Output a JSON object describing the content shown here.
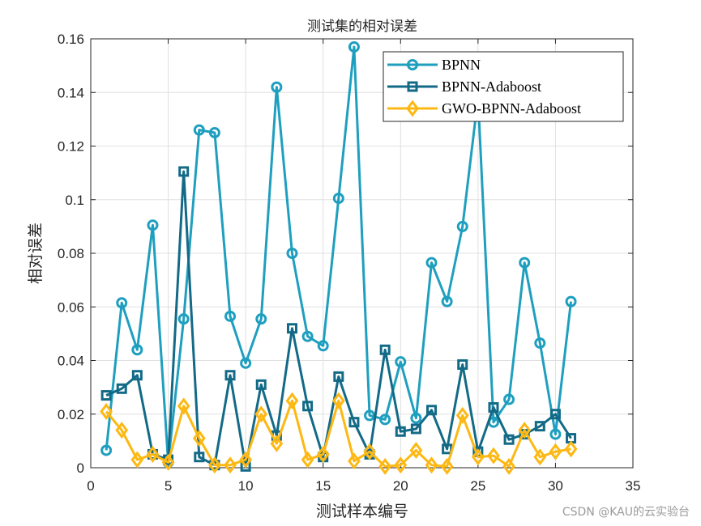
{
  "chart_data": {
    "type": "line",
    "title": "测试集的相对误差",
    "xlabel": "测试样本编号",
    "ylabel": "相对误差",
    "xlim": [
      0,
      35
    ],
    "ylim": [
      0,
      0.16
    ],
    "xticks": [
      0,
      5,
      10,
      15,
      20,
      25,
      30,
      35
    ],
    "yticks": [
      0,
      0.02,
      0.04,
      0.06,
      0.08,
      0.1,
      0.12,
      0.14,
      0.16
    ],
    "ytick_labels": [
      "0",
      "0.02",
      "0.04",
      "0.06",
      "0.08",
      "0.1",
      "0.12",
      "0.14",
      "0.16"
    ],
    "grid": true,
    "legend_position": "upper right",
    "x": [
      1,
      2,
      3,
      4,
      5,
      6,
      7,
      8,
      9,
      10,
      11,
      12,
      13,
      14,
      15,
      16,
      17,
      18,
      19,
      20,
      21,
      22,
      23,
      24,
      25,
      26,
      27,
      28,
      29,
      30,
      31
    ],
    "series": [
      {
        "name": "BPNN",
        "color": "#1F9FBF",
        "marker": "circle",
        "values": [
          0.0065,
          0.0615,
          0.044,
          0.0905,
          0.002,
          0.0555,
          0.126,
          0.125,
          0.0565,
          0.039,
          0.0555,
          0.142,
          0.08,
          0.049,
          0.0455,
          0.1005,
          0.157,
          0.0195,
          0.018,
          0.0395,
          0.0185,
          0.0765,
          0.062,
          0.09,
          0.138,
          0.017,
          0.0255,
          0.0765,
          0.0465,
          0.0125,
          0.062
        ]
      },
      {
        "name": "BPNN-Adaboost",
        "color": "#136A87",
        "marker": "square",
        "values": [
          0.027,
          0.0295,
          0.0345,
          0.005,
          0.003,
          0.1105,
          0.004,
          0.001,
          0.0345,
          0.0005,
          0.031,
          0.012,
          0.052,
          0.023,
          0.004,
          0.034,
          0.017,
          0.005,
          0.044,
          0.0135,
          0.0145,
          0.0215,
          0.007,
          0.0385,
          0.006,
          0.0225,
          0.0105,
          0.0125,
          0.0155,
          0.02,
          0.011
        ]
      },
      {
        "name": "GWO-BPNN-Adaboost",
        "color": "#FDB813",
        "marker": "diamond",
        "values": [
          0.021,
          0.014,
          0.003,
          0.005,
          0.002,
          0.023,
          0.011,
          0.001,
          0.001,
          0.003,
          0.02,
          0.009,
          0.025,
          0.003,
          0.005,
          0.025,
          0.0025,
          0.006,
          0.0005,
          0.001,
          0.0065,
          0.001,
          0.0005,
          0.0195,
          0.004,
          0.0045,
          0.0005,
          0.014,
          0.004,
          0.006,
          0.007
        ]
      }
    ]
  },
  "watermark": "CSDN @KAU的云实验台"
}
